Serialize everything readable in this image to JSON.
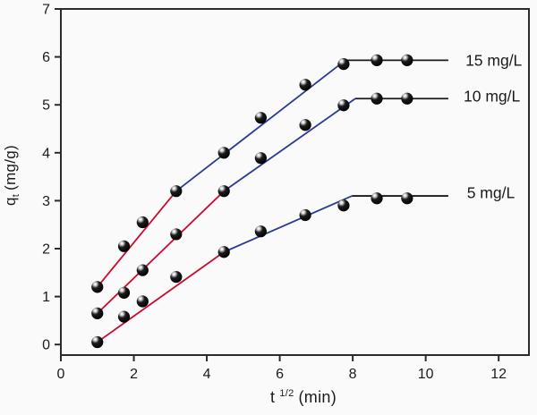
{
  "figure": {
    "background": "#fafafa",
    "frame_color": "#2b2b2b",
    "text_color": "#1b1b1b",
    "tick_label_color": "#1b1b1b"
  },
  "chart_data": {
    "type": "scatter",
    "title": "",
    "xlabel": {
      "base": "t",
      "sup": "1/2",
      "rest": "(min)"
    },
    "ylabel": {
      "base": "q",
      "sub": "t",
      "rest": "(mg/g)"
    },
    "xlim": [
      0,
      12.83
    ],
    "ylim": [
      -0.22,
      7
    ],
    "x_ticks": [
      0,
      2,
      4,
      6,
      8,
      10,
      12
    ],
    "y_ticks": [
      0,
      1,
      2,
      3,
      4,
      5,
      6,
      7
    ],
    "grid": false,
    "legend_position": "labels-right-of-lines",
    "x": [
      1,
      1.73,
      2.24,
      3.16,
      4.47,
      5.48,
      6.7,
      7.75,
      8.66,
      9.49
    ],
    "series": [
      {
        "name": "15 mg/L",
        "values": [
          1.2,
          2.05,
          2.55,
          3.2,
          4.0,
          4.73,
          5.42,
          5.85,
          5.93,
          5.93
        ],
        "label": {
          "text": "15 mg/L",
          "x": 11.09,
          "y": 5.93
        },
        "fit_segments": [
          {
            "color": "#cd0a33",
            "points": [
              [
                1,
                1.2
              ],
              [
                3.16,
                3.2
              ]
            ]
          },
          {
            "color": "#2c3a94",
            "points": [
              [
                3.16,
                3.2
              ],
              [
                7.8,
                5.93
              ]
            ]
          },
          {
            "color": "#1a1a1a",
            "points": [
              [
                7.8,
                5.93
              ],
              [
                10.62,
                5.93
              ]
            ]
          }
        ]
      },
      {
        "name": "10 mg/L",
        "values": [
          0.65,
          1.08,
          1.55,
          2.3,
          3.2,
          3.89,
          4.58,
          4.99,
          5.13,
          5.13
        ],
        "label": {
          "text": "10 mg/L",
          "x": 11.04,
          "y": 5.18
        },
        "fit_segments": [
          {
            "color": "#cd0a33",
            "points": [
              [
                1,
                0.65
              ],
              [
                4.47,
                3.2
              ]
            ]
          },
          {
            "color": "#2c3a94",
            "points": [
              [
                4.47,
                3.2
              ],
              [
                8.07,
                5.13
              ]
            ]
          },
          {
            "color": "#1a1a1a",
            "points": [
              [
                8.07,
                5.13
              ],
              [
                10.62,
                5.13
              ]
            ]
          }
        ]
      },
      {
        "name": "5 mg/L",
        "values": [
          0.05,
          0.58,
          0.9,
          1.41,
          1.93,
          2.36,
          2.7,
          2.9,
          3.05,
          3.05
        ],
        "label": {
          "text": "5 mg/L",
          "x": 11.13,
          "y": 3.17
        },
        "fit_segments": [
          {
            "color": "#cd0a33",
            "points": [
              [
                1,
                0.05
              ],
              [
                4.47,
                1.93
              ]
            ]
          },
          {
            "color": "#2c3a94",
            "points": [
              [
                4.47,
                1.93
              ],
              [
                7.98,
                3.1
              ]
            ]
          },
          {
            "color": "#1a1a1a",
            "points": [
              [
                7.98,
                3.1
              ],
              [
                10.62,
                3.1
              ]
            ]
          }
        ]
      }
    ],
    "marker": {
      "shape": "glossy-sphere",
      "fill": "#060606",
      "highlight": "#ffffff",
      "radius": 6.6
    }
  }
}
